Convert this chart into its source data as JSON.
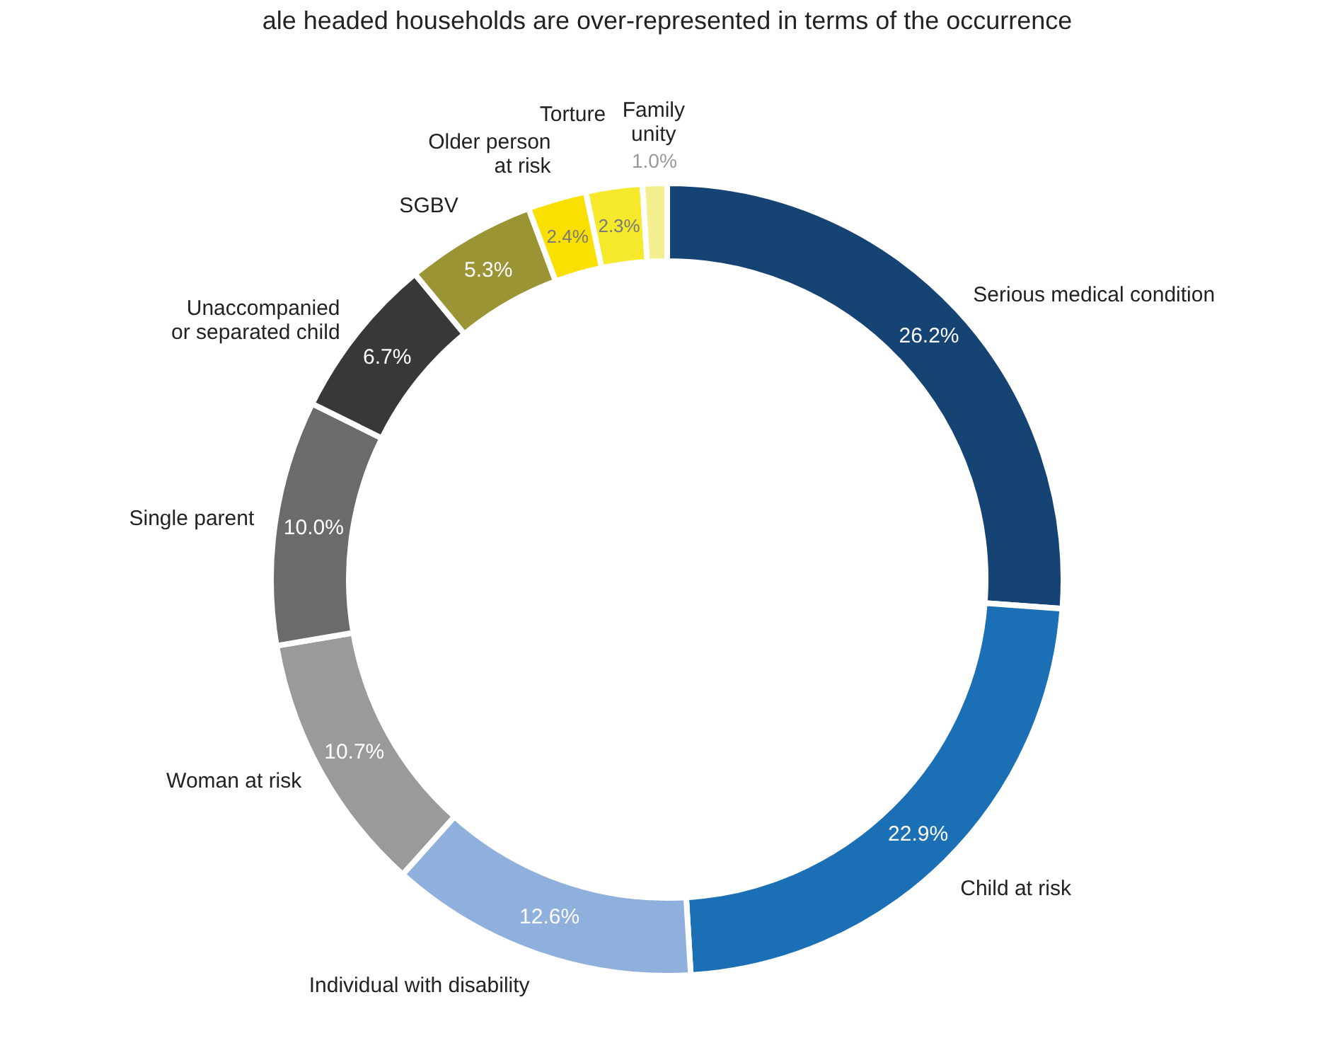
{
  "chart_data": {
    "type": "donut",
    "title": "ale headed households are over-represented in terms of the occurrence",
    "categories": [
      "Serious medical condition",
      "Child at risk",
      "Individual with disability",
      "Woman at risk",
      "Single parent",
      "Unaccompanied\nor separated child",
      "SGBV",
      "Older person\nat risk",
      "Torture",
      "Family\nunity"
    ],
    "values": [
      26.2,
      22.9,
      12.6,
      10.7,
      10.0,
      6.7,
      5.3,
      2.4,
      2.3,
      1.0
    ],
    "colors": [
      "#154373",
      "#1a6fb5",
      "#8fb0dd",
      "#9a9a9a",
      "#6b6b6b",
      "#383838",
      "#9a9434",
      "#f9e000",
      "#f6e92c",
      "#f3ee8e"
    ],
    "value_labels": [
      "26.2%",
      "22.9%",
      "12.6%",
      "10.7%",
      "10.0%",
      "6.7%",
      "5.3%",
      "2.4%",
      "2.3%",
      "1.0%"
    ]
  }
}
